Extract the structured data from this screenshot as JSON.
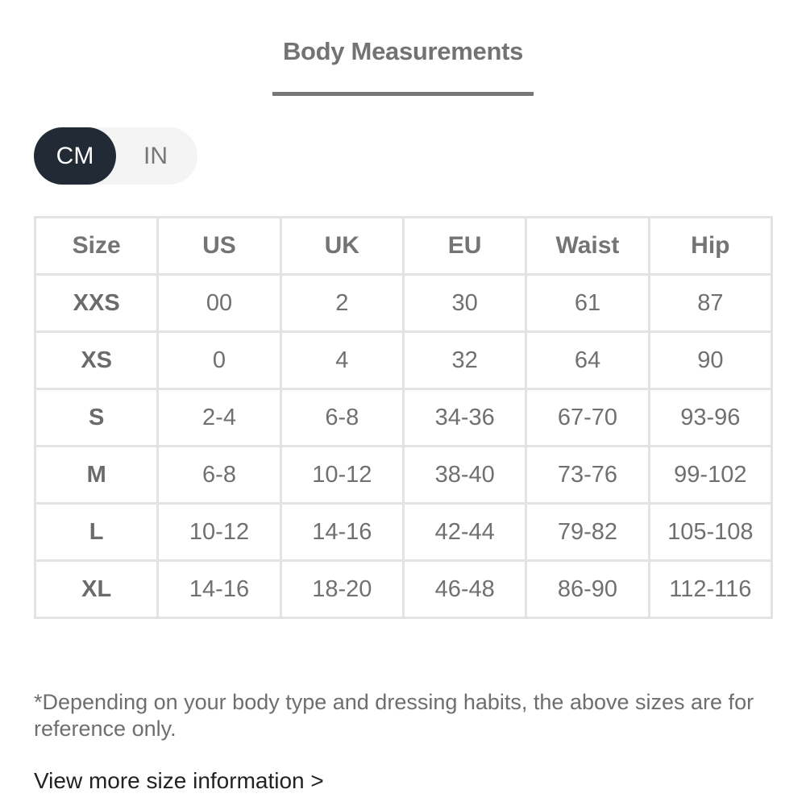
{
  "title": "Body Measurements",
  "unit_toggle": {
    "options": [
      "CM",
      "IN"
    ],
    "selected": "CM"
  },
  "table": {
    "headers": [
      "Size",
      "US",
      "UK",
      "EU",
      "Waist",
      "Hip"
    ],
    "rows": [
      [
        "XXS",
        "00",
        "2",
        "30",
        "61",
        "87"
      ],
      [
        "XS",
        "0",
        "4",
        "32",
        "64",
        "90"
      ],
      [
        "S",
        "2-4",
        "6-8",
        "34-36",
        "67-70",
        "93-96"
      ],
      [
        "M",
        "6-8",
        "10-12",
        "38-40",
        "73-76",
        "99-102"
      ],
      [
        "L",
        "10-12",
        "14-16",
        "42-44",
        "79-82",
        "105-108"
      ],
      [
        "XL",
        "14-16",
        "18-20",
        "46-48",
        "86-90",
        "112-116"
      ]
    ]
  },
  "note": "*Depending on your body type and dressing habits, the above sizes are for reference only.",
  "more_link": "View more size information >",
  "colors": {
    "toggle_active": "#222b35",
    "text": "#707070",
    "border": "#e3e3e3"
  }
}
